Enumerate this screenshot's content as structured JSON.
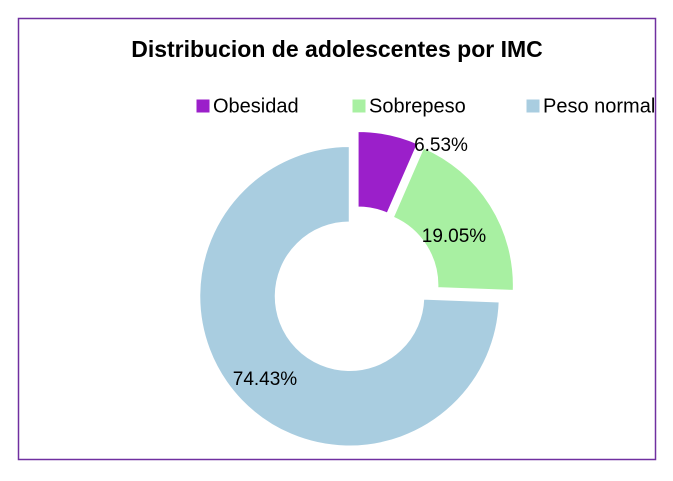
{
  "chart_data": {
    "type": "donut",
    "title": "Distribucion de adolescentes por IMC",
    "categories": [
      "Obesidad",
      "Sobrepeso",
      "Peso normal"
    ],
    "values": [
      6.53,
      19.05,
      74.43
    ],
    "value_labels": [
      "6.53%",
      "19.05%",
      "74.43%"
    ],
    "colors": [
      "#9b1fca",
      "#a8f0a2",
      "#a9cde0"
    ],
    "legend": "top"
  }
}
